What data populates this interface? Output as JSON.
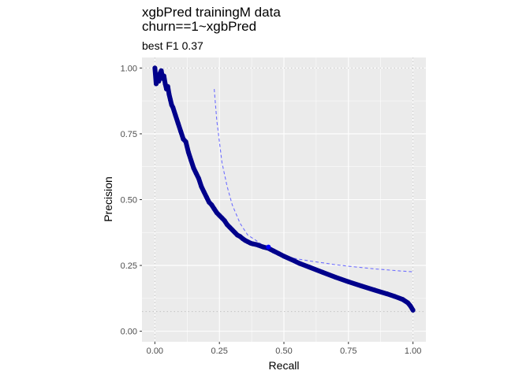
{
  "chart_data": {
    "type": "line",
    "title_line1": "xgbPred trainingM data",
    "title_line2": "churn==1~xgbPred",
    "subtitle": "best F1 0.37",
    "xlabel": "Recall",
    "ylabel": "Precision",
    "xlim": [
      -0.05,
      1.05
    ],
    "ylim": [
      -0.04,
      1.04
    ],
    "xticks": [
      0.0,
      0.25,
      0.5,
      0.75,
      1.0
    ],
    "xtick_labels": [
      "0.00",
      "0.25",
      "0.50",
      "0.75",
      "1.00"
    ],
    "yticks": [
      0.0,
      0.25,
      0.5,
      0.75,
      1.0
    ],
    "ytick_labels": [
      "0.00",
      "0.25",
      "0.50",
      "0.75",
      "1.00"
    ],
    "grid": true,
    "reference_lines": {
      "precision_baseline": 0.075,
      "precision_max": 1.0,
      "recall_min": 0.0,
      "recall_max": 1.0
    },
    "colors": {
      "curve": "#00008B",
      "f1_contour": "#6E6EFF",
      "best_point": "#0000FF",
      "panel": "#EBEBEB",
      "grid": "#FFFFFF",
      "ref_line": "#C8C8C8"
    },
    "series": [
      {
        "x": [
          0.0,
          0.005,
          0.01,
          0.015,
          0.02,
          0.025,
          0.03,
          0.035,
          0.04,
          0.045,
          0.05,
          0.055,
          0.06,
          0.065,
          0.07,
          0.08,
          0.09,
          0.1,
          0.11,
          0.12,
          0.13,
          0.14,
          0.15,
          0.16,
          0.17,
          0.18,
          0.19,
          0.2,
          0.21,
          0.22,
          0.23,
          0.24,
          0.25,
          0.26,
          0.27,
          0.28,
          0.29,
          0.3,
          0.31,
          0.32,
          0.33,
          0.34,
          0.35,
          0.36,
          0.37,
          0.38,
          0.39,
          0.4,
          0.42,
          0.44,
          0.46,
          0.48,
          0.5,
          0.53,
          0.56,
          0.6,
          0.65,
          0.7,
          0.75,
          0.8,
          0.85,
          0.9,
          0.93,
          0.96,
          0.98,
          0.99,
          1.0
        ],
        "y": [
          1.0,
          0.94,
          0.97,
          0.95,
          0.98,
          0.99,
          0.96,
          0.97,
          0.94,
          0.92,
          0.93,
          0.9,
          0.88,
          0.86,
          0.85,
          0.82,
          0.79,
          0.76,
          0.73,
          0.72,
          0.68,
          0.65,
          0.62,
          0.6,
          0.58,
          0.55,
          0.53,
          0.51,
          0.49,
          0.48,
          0.465,
          0.45,
          0.44,
          0.43,
          0.42,
          0.405,
          0.395,
          0.385,
          0.375,
          0.365,
          0.36,
          0.352,
          0.345,
          0.34,
          0.335,
          0.332,
          0.33,
          0.327,
          0.32,
          0.315,
          0.305,
          0.295,
          0.285,
          0.272,
          0.258,
          0.243,
          0.224,
          0.205,
          0.188,
          0.172,
          0.157,
          0.142,
          0.132,
          0.121,
          0.108,
          0.096,
          0.08
        ]
      }
    ],
    "f1_contour": {
      "f1": 0.37,
      "x": [
        0.23,
        0.24,
        0.26,
        0.28,
        0.3,
        0.33,
        0.36,
        0.4,
        0.45,
        0.5,
        0.55,
        0.6,
        0.65,
        0.7,
        0.75,
        0.8,
        0.85,
        0.9,
        0.95,
        1.0
      ],
      "y": [
        0.92,
        0.8,
        0.64,
        0.55,
        0.48,
        0.41,
        0.365,
        0.34,
        0.3,
        0.285,
        0.275,
        0.267,
        0.26,
        0.253,
        0.247,
        0.242,
        0.237,
        0.233,
        0.229,
        0.226
      ]
    },
    "best_point": {
      "recall": 0.44,
      "precision": 0.32
    }
  }
}
